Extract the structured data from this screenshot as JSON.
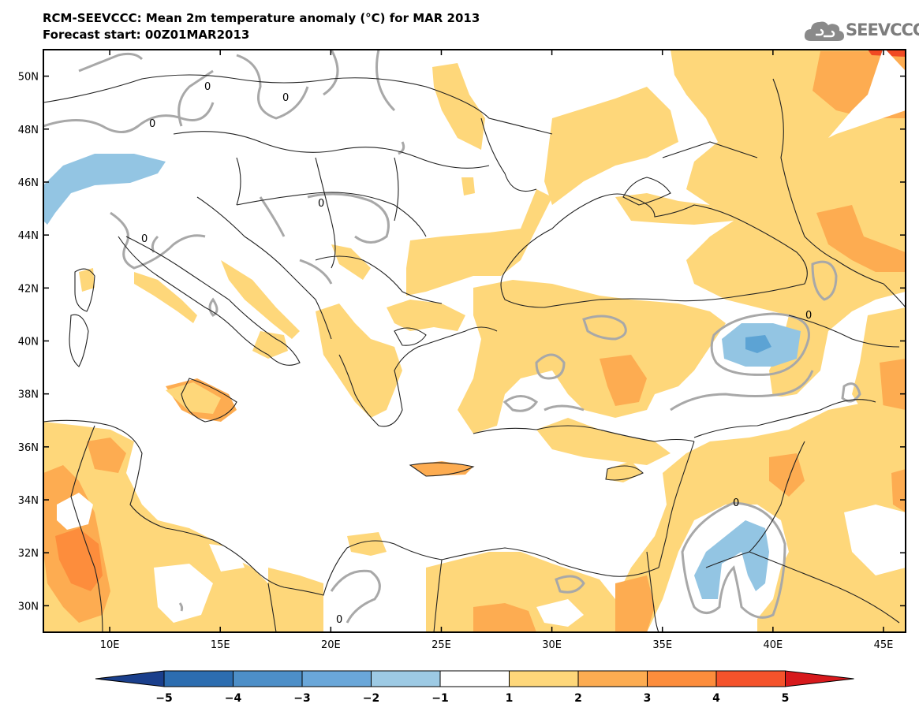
{
  "header": {
    "title": "RCM-SEEVCCC: Mean 2m temperature anomaly (°C) for MAR 2013",
    "subtitle": "Forecast start: 00Z01MAR2013"
  },
  "logo": {
    "text": "SEEVCCC",
    "icon": "cloud-icon"
  },
  "map": {
    "lon_range": [
      7,
      46
    ],
    "lat_range": [
      29,
      51
    ],
    "lat_ticks": [
      {
        "value": 50,
        "label": "50N"
      },
      {
        "value": 48,
        "label": "48N"
      },
      {
        "value": 46,
        "label": "46N"
      },
      {
        "value": 44,
        "label": "44N"
      },
      {
        "value": 42,
        "label": "42N"
      },
      {
        "value": 40,
        "label": "40N"
      },
      {
        "value": 38,
        "label": "38N"
      },
      {
        "value": 36,
        "label": "36N"
      },
      {
        "value": 34,
        "label": "34N"
      },
      {
        "value": 32,
        "label": "32N"
      },
      {
        "value": 30,
        "label": "30N"
      }
    ],
    "lon_ticks": [
      {
        "value": 10,
        "label": "10E"
      },
      {
        "value": 15,
        "label": "15E"
      },
      {
        "value": 20,
        "label": "20E"
      },
      {
        "value": 25,
        "label": "25E"
      },
      {
        "value": 30,
        "label": "30E"
      },
      {
        "value": 35,
        "label": "35E"
      },
      {
        "value": 40,
        "label": "40E"
      },
      {
        "value": 45,
        "label": "45E"
      }
    ],
    "contour_label": "0",
    "colors": {
      "anomaly_1_2": "#fed77a",
      "anomaly_2_3": "#fdac51",
      "anomaly_3_4": "#fd8d3c",
      "anomaly_4_5": "#f14a23",
      "anomaly_m1_m2": "#93c5e3",
      "anomaly_m2_m3": "#5ca3d4",
      "zero_contour": "#a8a8a8",
      "borders": "#222222"
    }
  },
  "colorbar": {
    "bins": [
      {
        "from": -5,
        "to": -4,
        "color": "#2c6db0"
      },
      {
        "from": -4,
        "to": -3,
        "color": "#4d8fc8"
      },
      {
        "from": -3,
        "to": -2,
        "color": "#6aa7d9"
      },
      {
        "from": -2,
        "to": -1,
        "color": "#9dcae4"
      },
      {
        "from": -1,
        "to": 1,
        "color": "#ffffff"
      },
      {
        "from": 1,
        "to": 2,
        "color": "#fed77a"
      },
      {
        "from": 2,
        "to": 3,
        "color": "#fdac51"
      },
      {
        "from": 3,
        "to": 4,
        "color": "#fd8d3c"
      },
      {
        "from": 4,
        "to": 5,
        "color": "#f5532b"
      }
    ],
    "low_extend_color": "#1a3f8c",
    "high_extend_color": "#d7191c",
    "labels": [
      "−5",
      "−4",
      "−3",
      "−2",
      "−1",
      "1",
      "2",
      "3",
      "4",
      "5"
    ]
  }
}
